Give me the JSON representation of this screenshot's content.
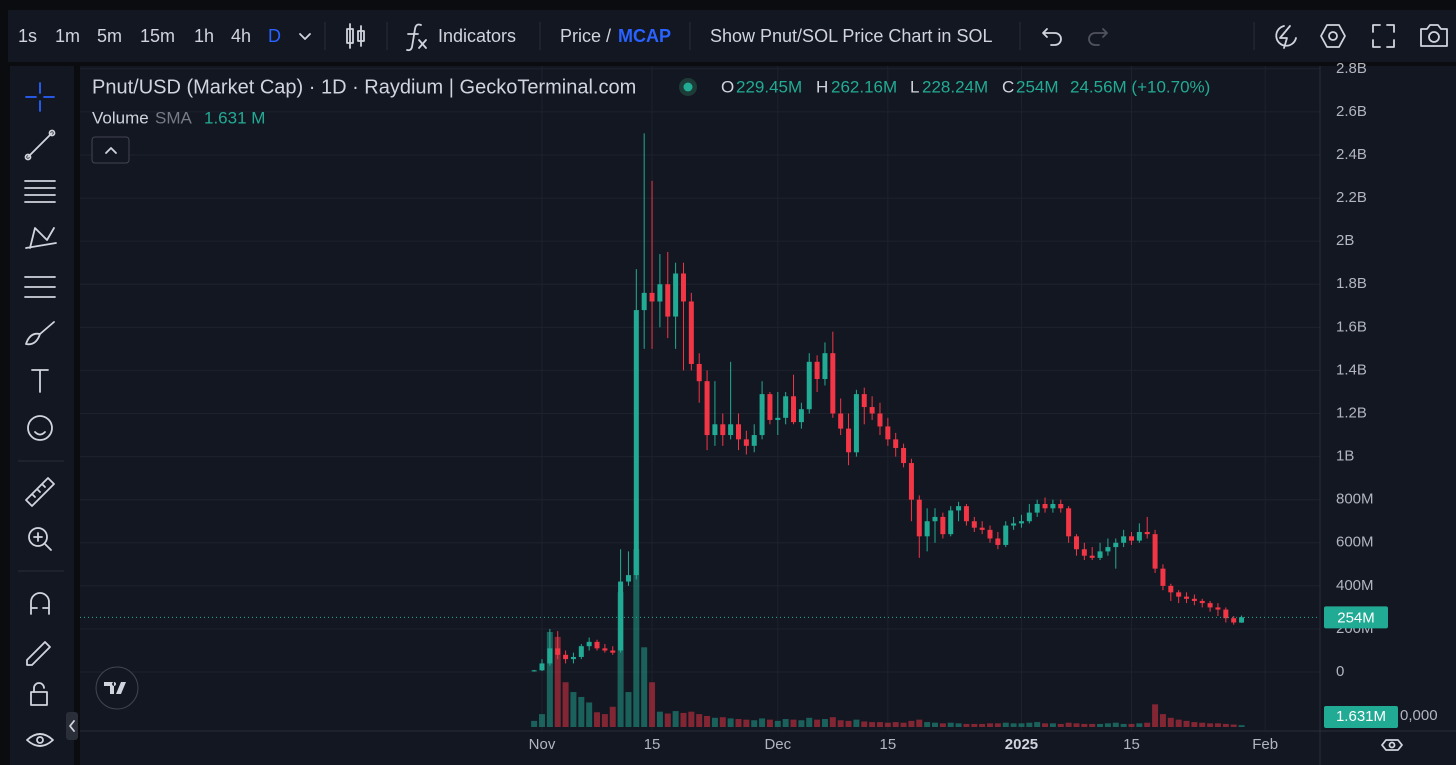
{
  "toolbar": {
    "intervals": [
      "1s",
      "1m",
      "5m",
      "15m",
      "1h",
      "4h",
      "D"
    ],
    "indicators": "Indicators",
    "price": "Price /",
    "mcap": "MCAP",
    "show_sol": "Show Pnut/SOL Price Chart in SOL"
  },
  "legend": {
    "title": "Pnut/USD (Market Cap) · 1D · Raydium | GeckoTerminal.com",
    "o_label": "O",
    "o": "229.45M",
    "h_label": "H",
    "h": "262.16M",
    "l_label": "L",
    "l": "228.24M",
    "c_label": "C",
    "c": "254M",
    "change": "24.56M (+10.70%)",
    "volume": "Volume",
    "sma": "SMA",
    "sma_value": "1.631 M"
  },
  "volume_axis_text": "0,000",
  "chart_data": {
    "type": "candlestick",
    "categories": [
      null,
      "Nov",
      null,
      null,
      null,
      null,
      null,
      null,
      null,
      null,
      null,
      null,
      null,
      null,
      null,
      "15",
      null,
      null,
      null,
      null,
      null,
      null,
      null,
      null,
      null,
      null,
      null,
      null,
      null,
      null,
      null,
      "Dec",
      null,
      null,
      null,
      null,
      null,
      null,
      null,
      null,
      null,
      null,
      null,
      null,
      null,
      "15",
      null,
      null,
      null,
      null,
      null,
      null,
      null,
      null,
      null,
      null,
      null,
      null,
      null,
      null,
      null,
      null,
      "2025",
      null,
      null,
      null,
      null,
      null,
      null,
      null,
      null,
      null,
      null,
      null,
      null,
      null,
      "15",
      null,
      null,
      null,
      null,
      null,
      null,
      null,
      null,
      null,
      null,
      null,
      null,
      null,
      null,
      null,
      null,
      "Feb"
    ],
    "open": [
      3,
      8,
      40,
      110,
      80,
      60,
      70,
      120,
      140,
      110,
      100,
      100,
      420,
      450,
      1680,
      1760,
      1720,
      1800,
      1650,
      1850,
      1720,
      1430,
      1350,
      1100,
      1150,
      1100,
      1150,
      1080,
      1050,
      1100,
      1290,
      1170,
      1180,
      1280,
      1160,
      1220,
      1440,
      1360,
      1480,
      1200,
      1130,
      1020,
      1290,
      1230,
      1200,
      1140,
      1080,
      1040,
      970,
      800,
      630,
      700,
      720,
      640,
      750,
      770,
      700,
      670,
      660,
      620,
      590,
      680,
      690,
      700,
      740,
      780,
      760,
      780,
      760,
      630,
      570,
      540,
      530,
      560,
      580,
      600,
      630,
      610,
      650,
      640,
      480,
      400,
      370,
      350,
      340,
      330,
      320,
      300,
      290,
      250,
      229.45,
      null,
      null,
      null
    ],
    "high": [
      10,
      60,
      200,
      190,
      100,
      90,
      130,
      160,
      150,
      130,
      120,
      570,
      560,
      1870,
      2500,
      2280,
      1940,
      1950,
      1900,
      1900,
      1760,
      1480,
      1400,
      1350,
      1200,
      1440,
      1200,
      1120,
      1150,
      1350,
      1300,
      1300,
      1300,
      1380,
      1250,
      1480,
      1470,
      1530,
      1580,
      1270,
      1200,
      1310,
      1320,
      1280,
      1250,
      1180,
      1110,
      1060,
      990,
      820,
      760,
      760,
      740,
      770,
      790,
      780,
      720,
      700,
      680,
      650,
      700,
      720,
      730,
      780,
      800,
      810,
      800,
      800,
      770,
      640,
      600,
      580,
      600,
      620,
      620,
      660,
      650,
      690,
      720,
      660,
      500,
      410,
      380,
      370,
      360,
      340,
      330,
      320,
      300,
      260,
      262.16,
      null,
      null,
      null
    ],
    "low": [
      2,
      5,
      30,
      60,
      40,
      40,
      60,
      100,
      100,
      90,
      80,
      90,
      400,
      430,
      1500,
      1500,
      1600,
      1550,
      1500,
      1400,
      1400,
      1250,
      1030,
      1050,
      1050,
      1080,
      1030,
      1010,
      1020,
      1080,
      1150,
      1100,
      1150,
      1150,
      1130,
      1200,
      1300,
      1330,
      1180,
      1100,
      960,
      1000,
      1150,
      1170,
      1100,
      1050,
      1000,
      950,
      700,
      530,
      560,
      600,
      620,
      630,
      700,
      680,
      650,
      640,
      600,
      570,
      580,
      660,
      670,
      690,
      720,
      740,
      740,
      740,
      600,
      540,
      520,
      520,
      520,
      540,
      480,
      580,
      590,
      600,
      620,
      460,
      380,
      330,
      320,
      320,
      310,
      300,
      280,
      260,
      230,
      220,
      228.24,
      null,
      null,
      null
    ],
    "close": [
      8,
      40,
      110,
      80,
      60,
      70,
      120,
      140,
      110,
      100,
      90,
      420,
      450,
      1680,
      1760,
      1720,
      1800,
      1650,
      1850,
      1720,
      1430,
      1350,
      1100,
      1150,
      1100,
      1150,
      1080,
      1050,
      1100,
      1290,
      1170,
      1180,
      1280,
      1160,
      1220,
      1440,
      1360,
      1480,
      1200,
      1130,
      1020,
      1290,
      1230,
      1200,
      1140,
      1080,
      1040,
      970,
      800,
      630,
      700,
      720,
      640,
      750,
      770,
      700,
      670,
      660,
      620,
      590,
      680,
      690,
      700,
      740,
      780,
      760,
      780,
      760,
      630,
      570,
      540,
      530,
      560,
      580,
      600,
      630,
      610,
      650,
      640,
      480,
      400,
      370,
      350,
      340,
      330,
      320,
      300,
      290,
      250,
      230,
      254,
      null,
      null,
      null
    ],
    "volume": [
      1,
      2.1,
      15.5,
      14.7,
      7.3,
      5.7,
      4.9,
      4,
      2.4,
      2.1,
      3.3,
      22,
      5.7,
      29,
      13,
      7.3,
      2.5,
      2.2,
      2.6,
      2.3,
      2.5,
      2.1,
      1.8,
      1.5,
      1.6,
      1.4,
      1.3,
      1.2,
      1.1,
      1.4,
      1.2,
      1,
      1.3,
      1.2,
      1.1,
      1.5,
      1.2,
      1.3,
      1.6,
      1.1,
      1,
      1.2,
      0.9,
      0.8,
      0.8,
      0.7,
      0.8,
      0.7,
      1,
      1.2,
      0.8,
      0.7,
      0.6,
      0.7,
      0.6,
      0.5,
      0.5,
      0.5,
      0.6,
      0.6,
      0.7,
      0.6,
      0.6,
      0.7,
      0.8,
      0.6,
      0.6,
      0.5,
      0.7,
      0.6,
      0.5,
      0.5,
      0.5,
      0.6,
      0.7,
      0.5,
      0.5,
      0.6,
      0.7,
      3.7,
      2.1,
      1.5,
      1.2,
      1,
      0.8,
      0.7,
      0.6,
      0.6,
      0.5,
      0.4,
      0.3,
      null,
      null,
      null
    ],
    "ylim": [
      -269,
      2813
    ],
    "yticks": [
      0,
      {
        "value": 200,
        "label": "200M"
      },
      {
        "value": 400,
        "label": "400M"
      },
      {
        "value": 600,
        "label": "600M"
      },
      {
        "value": 800,
        "label": "800M"
      },
      {
        "value": 1000,
        "label": "1B"
      },
      {
        "value": 1200,
        "label": "1.2B"
      },
      {
        "value": 1400,
        "label": "1.4B"
      },
      {
        "value": 1600,
        "label": "1.6B"
      },
      {
        "value": 1800,
        "label": "1.8B"
      },
      {
        "value": 2000,
        "label": "2B"
      },
      {
        "value": 2200,
        "label": "2.2B"
      },
      {
        "value": 2400,
        "label": "2.4B"
      },
      {
        "value": 2600,
        "label": "2.6B"
      },
      {
        "value": 2800,
        "label": "2.8B"
      }
    ],
    "volume_ylim": [
      0,
      108
    ],
    "last_value": 254,
    "last_value_label": "254M",
    "volume_sma": 1.631,
    "volume_sma_label": "1.631M",
    "up_color": "#22ab94",
    "down_color": "#f23645",
    "grid": true
  }
}
